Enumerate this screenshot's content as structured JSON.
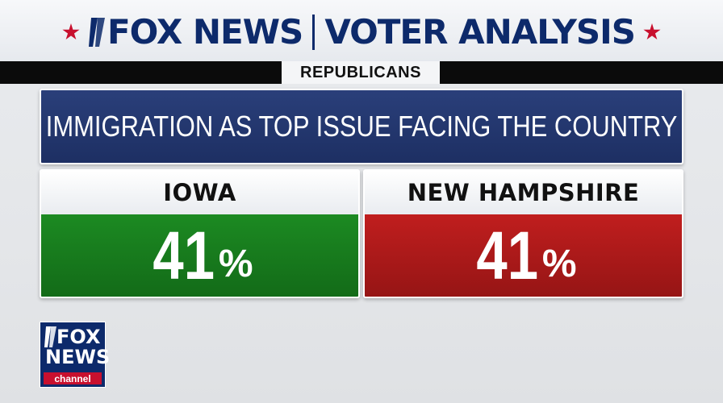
{
  "header": {
    "brand": "FOX NEWS",
    "section": "VOTER ANALYSIS",
    "subtitle": "REPUBLICANS",
    "accent_color": "#c8102e",
    "brand_color": "#0d2a6b"
  },
  "question": {
    "text": "IMMIGRATION AS TOP ISSUE FACING THE COUNTRY"
  },
  "results": [
    {
      "state": "IOWA",
      "value": "41",
      "unit": "%",
      "color": "#1c8a22"
    },
    {
      "state": "NEW HAMPSHIRE",
      "value": "41",
      "unit": "%",
      "color": "#c01e1e"
    }
  ],
  "channel_logo": {
    "line1": "FOX",
    "line2": "NEWS",
    "line3": "channel"
  }
}
